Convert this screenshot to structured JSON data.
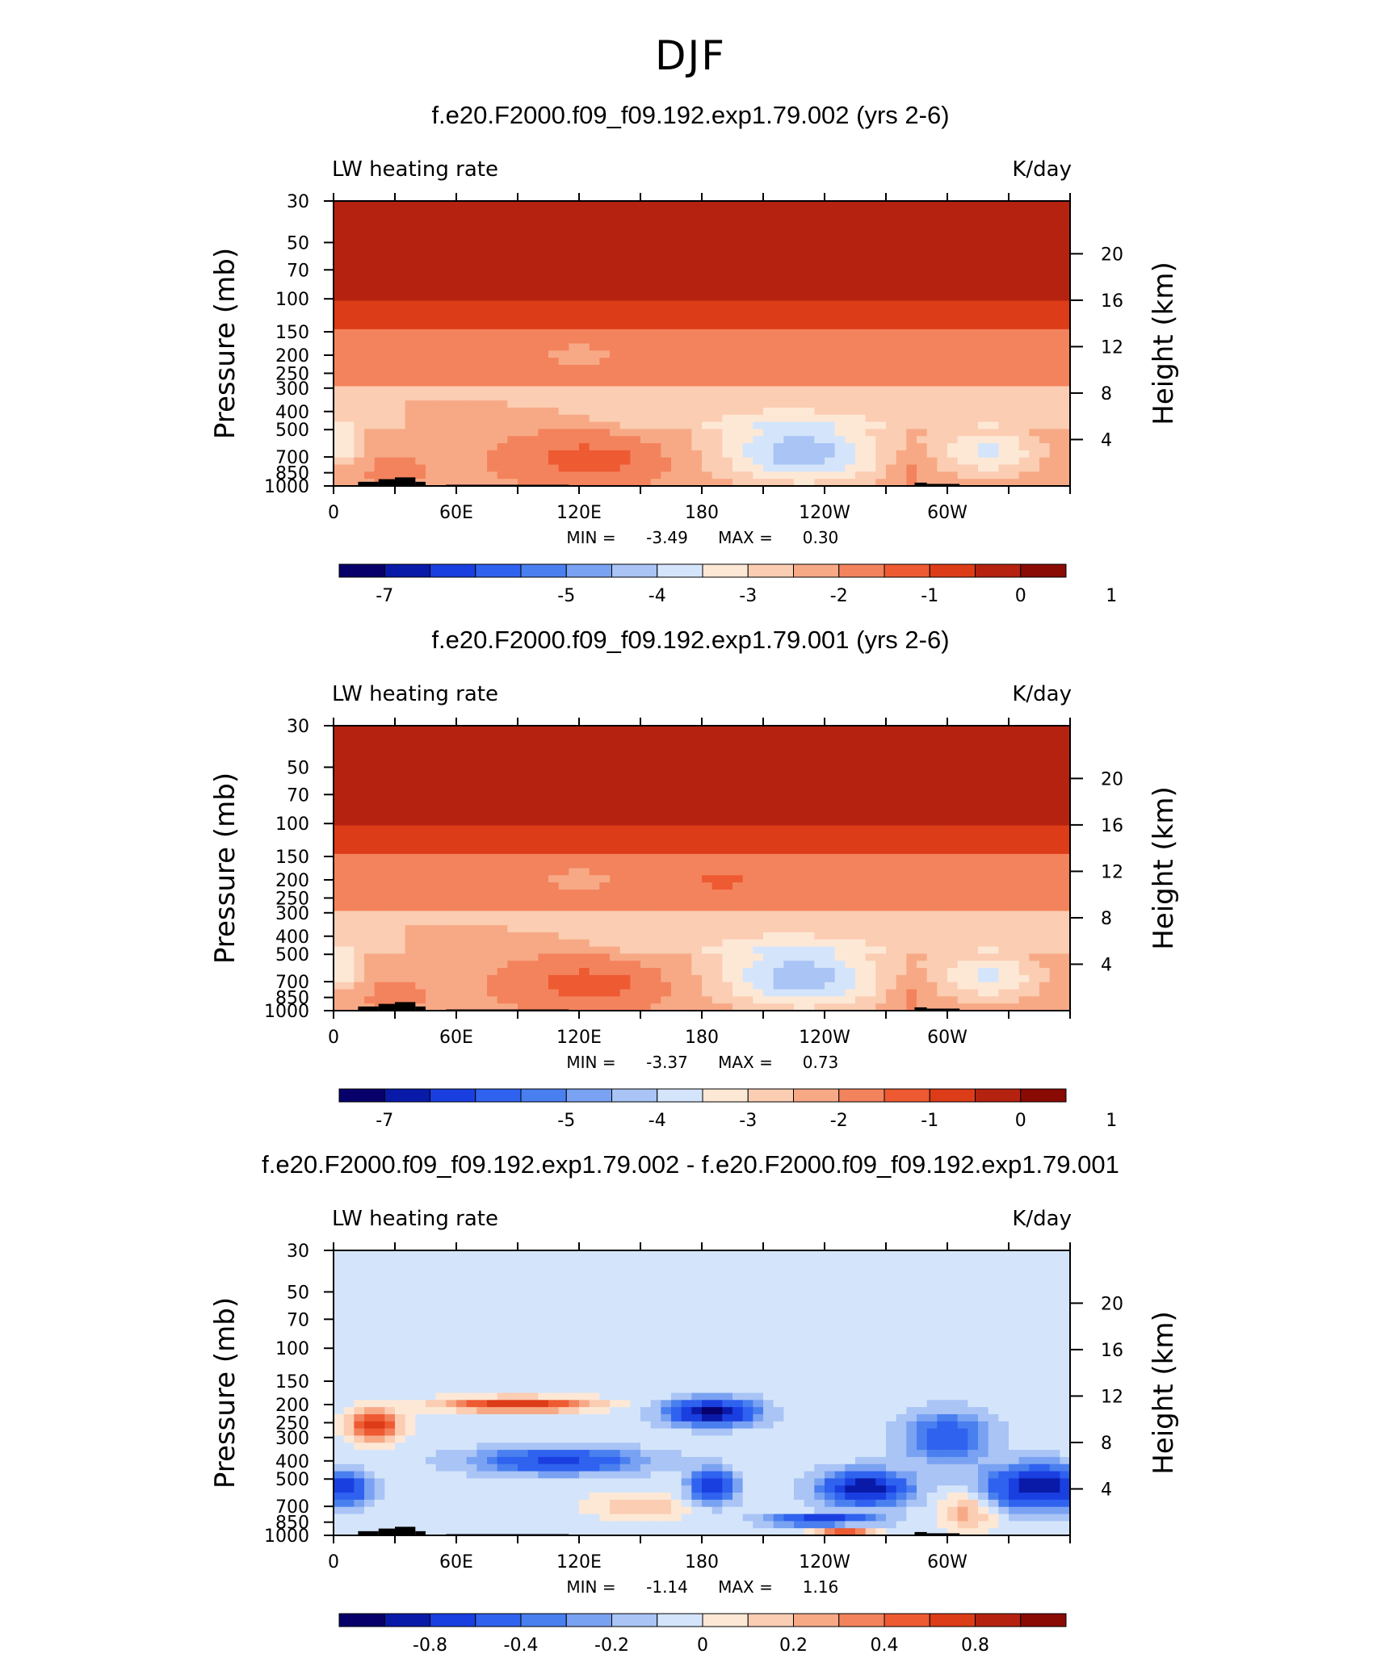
{
  "page": {
    "title": "DJF"
  },
  "colors": {
    "levels": [
      "#08006a",
      "#0a1aa8",
      "#1a3fe0",
      "#2f62ef",
      "#4a7fef",
      "#7aa2f2",
      "#a9c4f5",
      "#d4e5fb",
      "#fde8d6",
      "#fbcdb2",
      "#f7a986",
      "#f3835d",
      "#ee5a32",
      "#dc3c17",
      "#b52210",
      "#8a0a04"
    ],
    "land": "#000000"
  },
  "chart_data": [
    {
      "type": "heatmap",
      "title": "f.e20.F2000.f09_f09.192.exp1.79.002 (yrs 2-6)",
      "left_label": "LW heating rate",
      "right_label": "K/day",
      "ylabel": "Pressure (mb)",
      "y2label": "Height (km)",
      "x_ticks": [
        "0",
        "60E",
        "120E",
        "180",
        "120W",
        "60W"
      ],
      "y_ticks": [
        "30",
        "50",
        "70",
        "100",
        "150",
        "200",
        "250",
        "300",
        "400",
        "500",
        "700",
        "850",
        "1000"
      ],
      "y2_ticks": [
        "20",
        "16",
        "12",
        "8",
        "4"
      ],
      "stats": {
        "min_label": "MIN =",
        "min_value": "-3.49",
        "max_label": "MAX =",
        "max_value": "0.30"
      },
      "colorbar_labels": [
        "-7",
        "-5",
        "-4",
        "-3",
        "-2",
        "-1",
        "0",
        "1"
      ],
      "min": -3.49,
      "max": 0.3,
      "units": "K/day"
    },
    {
      "type": "heatmap",
      "title": "f.e20.F2000.f09_f09.192.exp1.79.001 (yrs 2-6)",
      "left_label": "LW heating rate",
      "right_label": "K/day",
      "ylabel": "Pressure (mb)",
      "y2label": "Height (km)",
      "x_ticks": [
        "0",
        "60E",
        "120E",
        "180",
        "120W",
        "60W"
      ],
      "y_ticks": [
        "30",
        "50",
        "70",
        "100",
        "150",
        "200",
        "250",
        "300",
        "400",
        "500",
        "700",
        "850",
        "1000"
      ],
      "y2_ticks": [
        "20",
        "16",
        "12",
        "8",
        "4"
      ],
      "stats": {
        "min_label": "MIN =",
        "min_value": "-3.37",
        "max_label": "MAX =",
        "max_value": "0.73"
      },
      "colorbar_labels": [
        "-7",
        "-5",
        "-4",
        "-3",
        "-2",
        "-1",
        "0",
        "1"
      ],
      "min": -3.37,
      "max": 0.73,
      "units": "K/day"
    },
    {
      "type": "heatmap",
      "title": "f.e20.F2000.f09_f09.192.exp1.79.002 - f.e20.F2000.f09_f09.192.exp1.79.001",
      "left_label": "LW heating rate",
      "right_label": "K/day",
      "ylabel": "Pressure (mb)",
      "y2label": "Height (km)",
      "x_ticks": [
        "0",
        "60E",
        "120E",
        "180",
        "120W",
        "60W"
      ],
      "y_ticks": [
        "30",
        "50",
        "70",
        "100",
        "150",
        "200",
        "250",
        "300",
        "400",
        "500",
        "700",
        "850",
        "1000"
      ],
      "y2_ticks": [
        "20",
        "16",
        "12",
        "8",
        "4"
      ],
      "stats": {
        "min_label": "MIN =",
        "min_value": "-1.14",
        "max_label": "MAX =",
        "max_value": "1.16"
      },
      "colorbar_labels": [
        "-0.8",
        "-0.4",
        "-0.2",
        "0",
        "0.2",
        "0.4",
        "0.8"
      ],
      "min": -1.14,
      "max": 1.16,
      "units": "K/day"
    }
  ]
}
